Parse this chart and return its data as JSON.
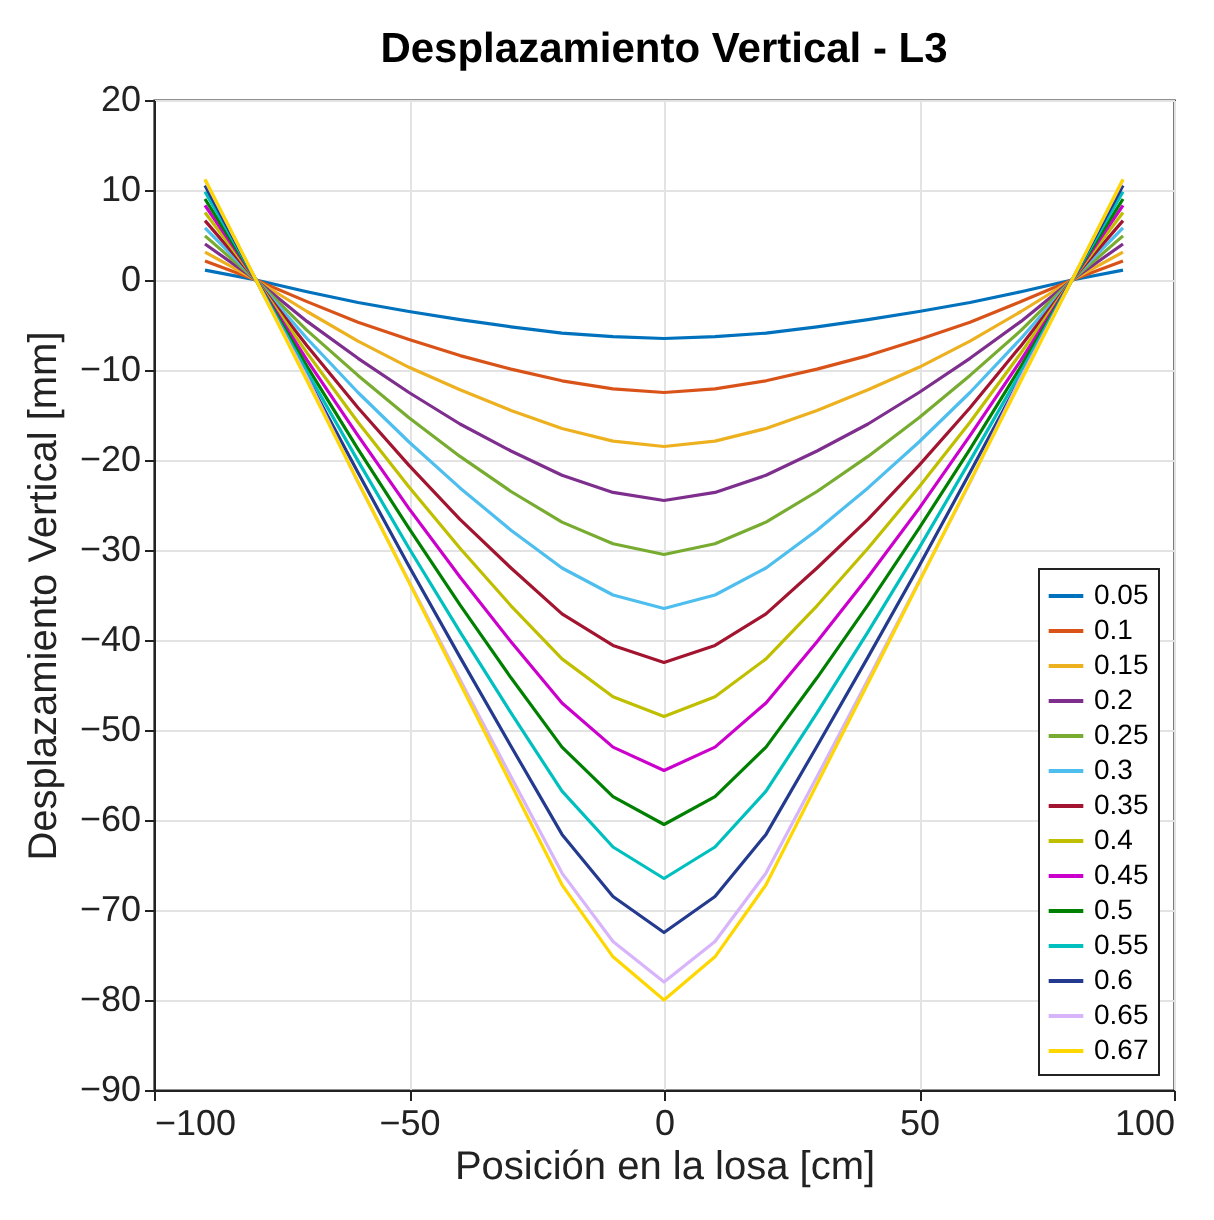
{
  "chart_data": {
    "type": "line",
    "title": "Desplazamiento Vertical - L3",
    "xlabel": "Posición en la losa [cm]",
    "ylabel": "Desplazamiento Vertical [mm]",
    "x": [
      -90,
      -80,
      -70,
      -60,
      -50,
      -40,
      -30,
      -20,
      -10,
      0,
      10,
      20,
      30,
      40,
      50,
      60,
      70,
      80,
      90
    ],
    "series": [
      {
        "name": "0.05",
        "color": "#0072bd",
        "values": [
          1.1,
          0,
          -1.3,
          -2.5,
          -3.5,
          -4.4,
          -5.2,
          -5.9,
          -6.3,
          -6.5,
          -6.3,
          -5.9,
          -5.2,
          -4.4,
          -3.5,
          -2.5,
          -1.3,
          0,
          1.1
        ]
      },
      {
        "name": "0.1",
        "color": "#d95319",
        "values": [
          2.1,
          0,
          -2.4,
          -4.7,
          -6.6,
          -8.4,
          -9.9,
          -11.2,
          -12.1,
          -12.5,
          -12.1,
          -11.2,
          -9.9,
          -8.4,
          -6.6,
          -4.7,
          -2.4,
          0,
          2.1
        ]
      },
      {
        "name": "0.15",
        "color": "#edb120",
        "values": [
          3.1,
          0,
          -3.5,
          -6.8,
          -9.7,
          -12.2,
          -14.5,
          -16.5,
          -17.9,
          -18.5,
          -17.9,
          -16.5,
          -14.5,
          -12.2,
          -9.7,
          -6.8,
          -3.5,
          0,
          3.1
        ]
      },
      {
        "name": "0.2",
        "color": "#7e2f8e",
        "values": [
          4.0,
          0,
          -4.6,
          -8.7,
          -12.5,
          -16.0,
          -19.0,
          -21.7,
          -23.6,
          -24.5,
          -23.6,
          -21.7,
          -19.0,
          -16.0,
          -12.5,
          -8.7,
          -4.6,
          0,
          4.0
        ]
      },
      {
        "name": "0.25",
        "color": "#77ac30",
        "values": [
          4.9,
          0,
          -5.6,
          -10.6,
          -15.3,
          -19.6,
          -23.5,
          -26.9,
          -29.3,
          -30.5,
          -29.3,
          -26.9,
          -23.5,
          -19.6,
          -15.3,
          -10.6,
          -5.6,
          0,
          4.9
        ]
      },
      {
        "name": "0.3",
        "color": "#4dbeee",
        "values": [
          5.8,
          0,
          -6.5,
          -12.5,
          -18.0,
          -23.1,
          -27.8,
          -32.0,
          -35.0,
          -36.5,
          -35.0,
          -32.0,
          -27.8,
          -23.1,
          -18.0,
          -12.5,
          -6.5,
          0,
          5.8
        ]
      },
      {
        "name": "0.35",
        "color": "#a2142f",
        "values": [
          6.6,
          0,
          -7.3,
          -14.2,
          -20.6,
          -26.6,
          -32.0,
          -37.1,
          -40.6,
          -42.5,
          -40.6,
          -37.1,
          -32.0,
          -26.6,
          -20.6,
          -14.2,
          -7.3,
          0,
          6.6
        ]
      },
      {
        "name": "0.4",
        "color": "#bfbf00",
        "values": [
          7.5,
          0,
          -8.1,
          -15.8,
          -23.0,
          -29.8,
          -36.2,
          -42.1,
          -46.3,
          -48.5,
          -46.3,
          -42.1,
          -36.2,
          -29.8,
          -23.0,
          -15.8,
          -8.1,
          0,
          7.5
        ]
      },
      {
        "name": "0.45",
        "color": "#cc00cc",
        "values": [
          8.3,
          0,
          -8.9,
          -17.3,
          -25.4,
          -33.0,
          -40.2,
          -47.0,
          -51.9,
          -54.5,
          -51.9,
          -47.0,
          -40.2,
          -33.0,
          -25.4,
          -17.3,
          -8.9,
          0,
          8.3
        ]
      },
      {
        "name": "0.5",
        "color": "#008000",
        "values": [
          9.0,
          0,
          -9.6,
          -18.8,
          -27.6,
          -36.1,
          -44.2,
          -51.9,
          -57.4,
          -60.5,
          -57.4,
          -51.9,
          -44.2,
          -36.1,
          -27.6,
          -18.8,
          -9.6,
          0,
          9.0
        ]
      },
      {
        "name": "0.55",
        "color": "#00bfbf",
        "values": [
          9.8,
          0,
          -10.2,
          -20.1,
          -29.8,
          -39.1,
          -48.1,
          -56.8,
          -63.0,
          -66.5,
          -63.0,
          -56.8,
          -48.1,
          -39.1,
          -29.8,
          -20.1,
          -10.2,
          0,
          9.8
        ]
      },
      {
        "name": "0.6",
        "color": "#233a8e",
        "values": [
          10.5,
          0,
          -10.8,
          -21.4,
          -31.8,
          -41.9,
          -51.8,
          -61.6,
          -68.5,
          -72.5,
          -68.5,
          -61.6,
          -51.8,
          -41.9,
          -31.8,
          -21.4,
          -10.8,
          0,
          10.5
        ]
      },
      {
        "name": "0.65",
        "color": "#d8b4fa",
        "values": [
          11.1,
          0,
          -10.8,
          -22.5,
          -33.5,
          -44.4,
          -55.2,
          -65.9,
          -73.5,
          -78,
          -73.5,
          -65.9,
          -55.2,
          -44.4,
          -33.5,
          -22.5,
          -10.8,
          0,
          11.1
        ]
      },
      {
        "name": "0.67",
        "color": "#ffd700",
        "values": [
          11.2,
          0,
          -11.2,
          -22.4,
          -33.6,
          -44.8,
          -56,
          -67.2,
          -75.2,
          -80,
          -75.2,
          -67.2,
          -56,
          -44.8,
          -33.6,
          -22.4,
          -11.2,
          0,
          11.2
        ]
      }
    ],
    "xlim": [
      -100,
      100
    ],
    "xticks": [
      -100,
      -50,
      0,
      50,
      100
    ],
    "ylim": [
      -90,
      20
    ],
    "yticks": [
      -90,
      -80,
      -70,
      -60,
      -50,
      -40,
      -30,
      -20,
      -10,
      0,
      10,
      20
    ],
    "grid": true,
    "legend": "bottom right",
    "marker": "none",
    "line_style": "solid"
  }
}
